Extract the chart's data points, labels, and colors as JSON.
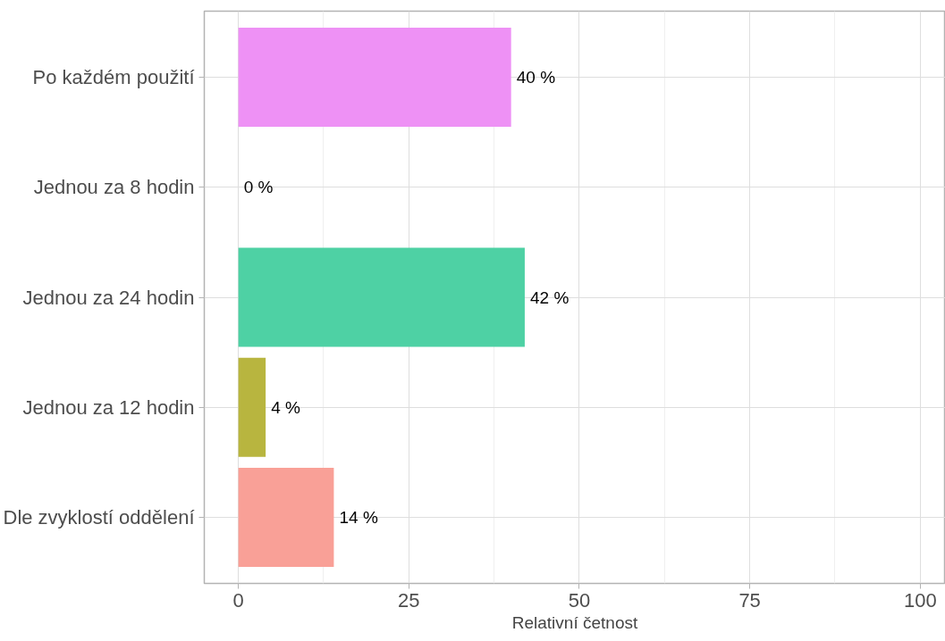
{
  "chart_data": {
    "type": "bar",
    "orientation": "horizontal",
    "xlabel": "Relativní četnost",
    "categories": [
      "Po každém použití",
      "Jednou za 8 hodin",
      "Jednou za 24 hodin",
      "Jednou za 12 hodin",
      "Dle zvyklostí oddělení"
    ],
    "values": [
      40,
      0,
      42,
      4,
      14
    ],
    "colors": [
      "#ee91f5",
      "#7fd3f9",
      "#4ed1a4",
      "#b8b53f",
      "#f9a097"
    ],
    "value_labels": [
      "40 %",
      "0 %",
      "42 %",
      "4 %",
      "14 %"
    ],
    "xlim": [
      -5,
      103.7
    ],
    "xticks": [
      0,
      25,
      50,
      75,
      100
    ],
    "grid": true
  }
}
